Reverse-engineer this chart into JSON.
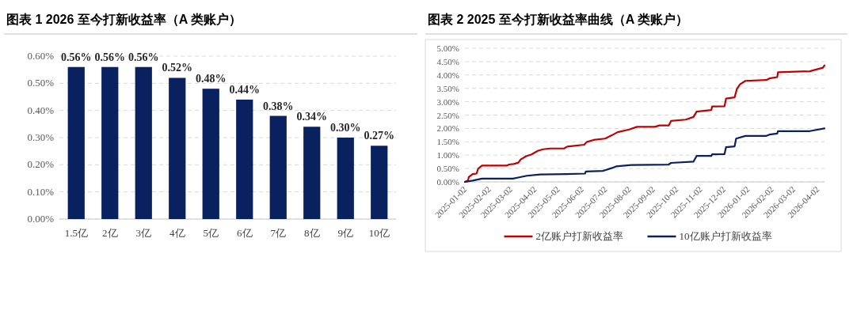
{
  "chart_data": [
    {
      "type": "bar",
      "title": "图表 1 2026 至今打新收益率（A 类账户）",
      "categories": [
        "1.5亿",
        "2亿",
        "3亿",
        "4亿",
        "5亿",
        "6亿",
        "7亿",
        "8亿",
        "9亿",
        "10亿"
      ],
      "values": [
        0.56,
        0.56,
        0.56,
        0.52,
        0.48,
        0.44,
        0.38,
        0.34,
        0.3,
        0.27
      ],
      "color": "#0a215f",
      "value_labels": [
        "0.56%",
        "0.56%",
        "0.56%",
        "0.52%",
        "0.48%",
        "0.44%",
        "0.38%",
        "0.34%",
        "0.30%",
        "0.27%"
      ],
      "ylim": [
        0,
        0.6
      ],
      "yticks": [
        {
          "value": 0,
          "label": "0.00%"
        },
        {
          "value": 0.1,
          "label": "0.10%"
        },
        {
          "value": 0.2,
          "label": "0.20%"
        },
        {
          "value": 0.3,
          "label": "0.30%"
        },
        {
          "value": 0.4,
          "label": "0.40%"
        },
        {
          "value": 0.5,
          "label": "0.50%"
        },
        {
          "value": 0.6,
          "label": "0.60%"
        }
      ],
      "grid": "y"
    },
    {
      "type": "line",
      "title": "图表 2 2025 至今打新收益率曲线（A 类账户）",
      "legend": "bottom",
      "grid": "y",
      "xlim": [
        "2025-01-02",
        "2026-04-11"
      ],
      "xticks": [
        "2025-01-02",
        "2025-02-02",
        "2025-03-02",
        "2025-04-02",
        "2025-05-02",
        "2025-06-02",
        "2025-07-02",
        "2025-08-02",
        "2025-09-02",
        "2025-10-02",
        "2025-11-02",
        "2025-12-02",
        "2026-01-02",
        "2026-02-02",
        "2026-03-02",
        "2026-04-02"
      ],
      "ylim": [
        0,
        5
      ],
      "yticks": [
        {
          "value": 0,
          "label": "0.00%"
        },
        {
          "value": 0.5,
          "label": "0.50%"
        },
        {
          "value": 1,
          "label": "1.00%"
        },
        {
          "value": 1.5,
          "label": "1.50%"
        },
        {
          "value": 2,
          "label": "2.00%"
        },
        {
          "value": 2.5,
          "label": "2.50%"
        },
        {
          "value": 3,
          "label": "3.00%"
        },
        {
          "value": 3.5,
          "label": "3.50%"
        },
        {
          "value": 4,
          "label": "4.00%"
        },
        {
          "value": 4.5,
          "label": "4.50%"
        },
        {
          "value": 5,
          "label": "5.00%"
        }
      ],
      "series": [
        {
          "name": "2亿账户打新收益率",
          "color": "#c00000",
          "x": [
            "2025-01-02",
            "2025-01-06",
            "2025-01-07",
            "2025-01-12",
            "2025-01-17",
            "2025-01-19",
            "2025-01-24",
            "2025-02-25",
            "2025-02-28",
            "2025-03-06",
            "2025-03-12",
            "2025-03-15",
            "2025-03-22",
            "2025-03-29",
            "2025-04-06",
            "2025-04-13",
            "2025-04-22",
            "2025-05-10",
            "2025-05-14",
            "2025-06-05",
            "2025-06-08",
            "2025-06-17",
            "2025-07-02",
            "2025-07-11",
            "2025-07-18",
            "2025-08-02",
            "2025-08-12",
            "2025-09-04",
            "2025-09-10",
            "2025-09-22",
            "2025-09-25",
            "2025-10-14",
            "2025-10-24",
            "2025-10-28",
            "2025-11-16",
            "2025-11-17",
            "2025-12-03",
            "2025-12-05",
            "2025-12-16",
            "2025-12-19",
            "2025-12-23",
            "2025-12-30",
            "2026-01-26",
            "2026-01-30",
            "2026-02-09",
            "2026-02-10",
            "2026-03-23",
            "2026-04-09",
            "2026-04-11"
          ],
          "values": [
            0,
            0.05,
            0.18,
            0.29,
            0.31,
            0.49,
            0.61,
            0.61,
            0.65,
            0.67,
            0.72,
            0.84,
            0.96,
            1.03,
            1.16,
            1.22,
            1.25,
            1.25,
            1.32,
            1.39,
            1.49,
            1.57,
            1.62,
            1.75,
            1.86,
            1.96,
            2.06,
            2.06,
            2.11,
            2.11,
            2.28,
            2.33,
            2.43,
            2.63,
            2.69,
            2.82,
            2.83,
            3.12,
            3.16,
            3.48,
            3.65,
            3.78,
            3.81,
            3.87,
            3.92,
            4.1,
            4.14,
            4.27,
            4.36
          ]
        },
        {
          "name": "10亿账户打新收益率",
          "color": "#0a215f",
          "x": [
            "2025-01-02",
            "2025-01-12",
            "2025-01-24",
            "2025-03-05",
            "2025-03-13",
            "2025-03-23",
            "2025-04-09",
            "2025-05-13",
            "2025-06-06",
            "2025-06-07",
            "2025-06-29",
            "2025-07-11",
            "2025-07-16",
            "2025-08-05",
            "2025-08-07",
            "2025-09-22",
            "2025-09-25",
            "2025-10-24",
            "2025-10-28",
            "2025-11-16",
            "2025-11-17",
            "2025-12-03",
            "2025-12-05",
            "2025-12-16",
            "2025-12-18",
            "2025-12-30",
            "2026-01-26",
            "2026-01-30",
            "2026-02-09",
            "2026-02-10",
            "2026-03-23",
            "2026-04-11"
          ],
          "values": [
            0,
            0.05,
            0.12,
            0.12,
            0.17,
            0.23,
            0.28,
            0.29,
            0.31,
            0.39,
            0.41,
            0.52,
            0.58,
            0.63,
            0.63,
            0.65,
            0.71,
            0.76,
            0.97,
            0.97,
            1.03,
            1.04,
            1.3,
            1.33,
            1.62,
            1.72,
            1.72,
            1.77,
            1.81,
            1.9,
            1.9,
            2.0
          ]
        }
      ]
    }
  ]
}
